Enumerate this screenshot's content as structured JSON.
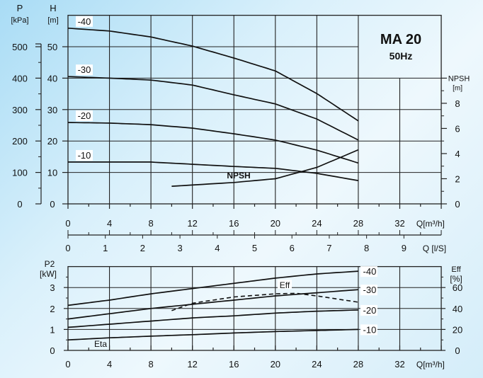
{
  "chart_data": [
    {
      "type": "line",
      "title": "MA 20",
      "subtitle": "50Hz",
      "xlabel": "Q[m³/h]",
      "x2label": "Q [l/S]",
      "ylabel": "H [m]",
      "ylabel_p": "P [kPa]",
      "ylabel_right": "NPSH [m]",
      "xlim": [
        0,
        36
      ],
      "ylim": [
        0,
        60
      ],
      "grid": true,
      "x_ticks": [
        0,
        4,
        8,
        12,
        16,
        20,
        24,
        28,
        32
      ],
      "x2_ticks": [
        0,
        1,
        2,
        3,
        4,
        5,
        6,
        7,
        8,
        9
      ],
      "h_ticks": [
        0,
        10,
        20,
        30,
        40,
        50
      ],
      "p_ticks": [
        0,
        100,
        200,
        300,
        400,
        500
      ],
      "npsh_ticks": [
        0,
        2,
        4,
        6,
        8
      ],
      "x": [
        0,
        4,
        8,
        12,
        16,
        20,
        24,
        28
      ],
      "series": [
        {
          "name": "-40",
          "values": [
            55.9,
            55.0,
            53.1,
            50.2,
            46.4,
            42.3,
            35.1,
            26.4
          ]
        },
        {
          "name": "-30",
          "values": [
            40.5,
            40.0,
            39.4,
            37.8,
            34.7,
            31.8,
            27.0,
            20.3
          ]
        },
        {
          "name": "-20",
          "values": [
            25.9,
            25.7,
            25.2,
            24.1,
            22.3,
            20.3,
            17.1,
            13.0
          ]
        },
        {
          "name": "-10",
          "values": [
            13.3,
            13.3,
            13.3,
            12.6,
            11.9,
            11.3,
            9.7,
            7.4
          ]
        }
      ],
      "npsh": {
        "name": "NPSH",
        "x": [
          10,
          16,
          20,
          24,
          28
        ],
        "values": [
          1.4,
          1.7,
          2.0,
          2.9,
          4.3
        ]
      }
    },
    {
      "type": "line",
      "xlabel": "Q[m³/h]",
      "ylabel": "P2 [kW]",
      "ylabel_right": "Eff [%]",
      "xlim": [
        0,
        36
      ],
      "ylim": [
        0,
        4
      ],
      "grid": true,
      "x_ticks": [
        0,
        4,
        8,
        12,
        16,
        20,
        24,
        28,
        32
      ],
      "p2_ticks": [
        0,
        1,
        2,
        3
      ],
      "eff_ticks": [
        0,
        20,
        40,
        60
      ],
      "x": [
        0,
        4,
        8,
        12,
        16,
        20,
        24,
        28
      ],
      "series": [
        {
          "name": "-40",
          "values": [
            2.15,
            2.4,
            2.7,
            2.95,
            3.2,
            3.45,
            3.65,
            3.78
          ]
        },
        {
          "name": "-30",
          "values": [
            1.5,
            1.75,
            2.0,
            2.2,
            2.4,
            2.6,
            2.75,
            2.9
          ]
        },
        {
          "name": "-20",
          "values": [
            1.1,
            1.25,
            1.4,
            1.55,
            1.65,
            1.78,
            1.87,
            1.93
          ]
        },
        {
          "name": "-10",
          "values": [
            0.5,
            0.6,
            0.68,
            0.75,
            0.83,
            0.9,
            0.95,
            1.0
          ]
        }
      ],
      "efficiency": {
        "name": "Eff",
        "x": [
          10,
          12,
          16,
          20,
          22,
          24,
          28
        ],
        "values": [
          38,
          45,
          51,
          54,
          54.5,
          52,
          46
        ]
      },
      "annotation": "Eta"
    }
  ]
}
